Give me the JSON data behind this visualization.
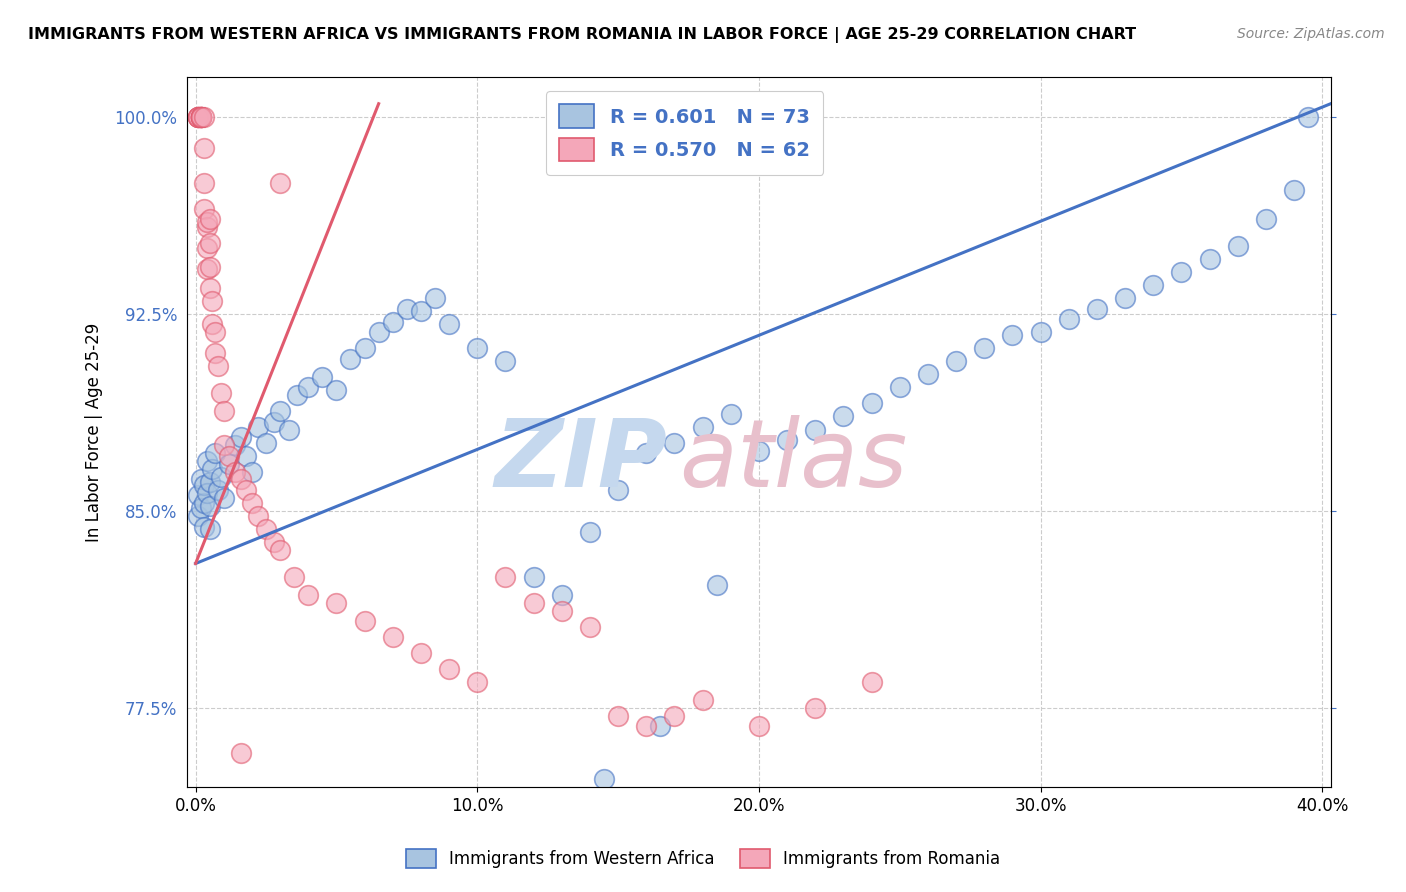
{
  "title": "IMMIGRANTS FROM WESTERN AFRICA VS IMMIGRANTS FROM ROMANIA IN LABOR FORCE | AGE 25-29 CORRELATION CHART",
  "source": "Source: ZipAtlas.com",
  "ylabel": "In Labor Force | Age 25-29",
  "xlim": [
    -0.003,
    0.403
  ],
  "ylim": [
    0.745,
    1.015
  ],
  "yticks": [
    0.775,
    0.85,
    0.925,
    1.0
  ],
  "ytick_labels": [
    "77.5%",
    "85.0%",
    "92.5%",
    "100.0%"
  ],
  "xticks": [
    0.0,
    0.1,
    0.2,
    0.3,
    0.4
  ],
  "xtick_labels": [
    "0.0%",
    "10.0%",
    "20.0%",
    "30.0%",
    "40.0%"
  ],
  "blue_R": 0.601,
  "blue_N": 73,
  "pink_R": 0.57,
  "pink_N": 62,
  "blue_color": "#a8c4e0",
  "pink_color": "#f4a7b9",
  "blue_line_color": "#4472c4",
  "pink_line_color": "#e05a6e",
  "blue_line_x": [
    0.0,
    0.403
  ],
  "blue_line_y": [
    0.83,
    1.005
  ],
  "pink_line_x": [
    0.0,
    0.065
  ],
  "pink_line_y": [
    0.83,
    1.005
  ],
  "blue_scatter_x": [
    0.001,
    0.001,
    0.002,
    0.002,
    0.003,
    0.003,
    0.003,
    0.004,
    0.004,
    0.005,
    0.005,
    0.005,
    0.006,
    0.007,
    0.008,
    0.009,
    0.01,
    0.012,
    0.014,
    0.016,
    0.018,
    0.02,
    0.022,
    0.025,
    0.028,
    0.03,
    0.033,
    0.036,
    0.04,
    0.045,
    0.05,
    0.055,
    0.06,
    0.065,
    0.07,
    0.075,
    0.08,
    0.085,
    0.09,
    0.1,
    0.11,
    0.12,
    0.13,
    0.14,
    0.15,
    0.16,
    0.17,
    0.18,
    0.19,
    0.2,
    0.21,
    0.22,
    0.23,
    0.24,
    0.25,
    0.26,
    0.27,
    0.28,
    0.29,
    0.3,
    0.31,
    0.32,
    0.33,
    0.34,
    0.35,
    0.36,
    0.37,
    0.38,
    0.39,
    0.395,
    0.145,
    0.165,
    0.185
  ],
  "blue_scatter_y": [
    0.856,
    0.848,
    0.851,
    0.862,
    0.853,
    0.86,
    0.844,
    0.857,
    0.869,
    0.852,
    0.861,
    0.843,
    0.866,
    0.872,
    0.858,
    0.863,
    0.855,
    0.868,
    0.875,
    0.878,
    0.871,
    0.865,
    0.882,
    0.876,
    0.884,
    0.888,
    0.881,
    0.894,
    0.897,
    0.901,
    0.896,
    0.908,
    0.912,
    0.918,
    0.922,
    0.927,
    0.926,
    0.931,
    0.921,
    0.912,
    0.907,
    0.825,
    0.818,
    0.842,
    0.858,
    0.872,
    0.876,
    0.882,
    0.887,
    0.873,
    0.877,
    0.881,
    0.886,
    0.891,
    0.897,
    0.902,
    0.907,
    0.912,
    0.917,
    0.918,
    0.923,
    0.927,
    0.931,
    0.936,
    0.941,
    0.946,
    0.951,
    0.961,
    0.972,
    1.0,
    0.748,
    0.768,
    0.822
  ],
  "pink_scatter_x": [
    0.001,
    0.001,
    0.001,
    0.001,
    0.001,
    0.002,
    0.002,
    0.002,
    0.002,
    0.002,
    0.002,
    0.002,
    0.003,
    0.003,
    0.003,
    0.003,
    0.004,
    0.004,
    0.004,
    0.004,
    0.005,
    0.005,
    0.005,
    0.005,
    0.006,
    0.006,
    0.007,
    0.007,
    0.008,
    0.009,
    0.01,
    0.01,
    0.012,
    0.014,
    0.016,
    0.018,
    0.02,
    0.022,
    0.025,
    0.028,
    0.03,
    0.035,
    0.04,
    0.05,
    0.06,
    0.07,
    0.08,
    0.09,
    0.1,
    0.11,
    0.12,
    0.13,
    0.14,
    0.15,
    0.16,
    0.17,
    0.18,
    0.2,
    0.22,
    0.24,
    0.016,
    0.03
  ],
  "pink_scatter_y": [
    1.0,
    1.0,
    1.0,
    1.0,
    1.0,
    1.0,
    1.0,
    1.0,
    1.0,
    1.0,
    1.0,
    1.0,
    1.0,
    0.988,
    0.975,
    0.965,
    0.958,
    0.95,
    0.942,
    0.96,
    0.961,
    0.952,
    0.943,
    0.935,
    0.93,
    0.921,
    0.918,
    0.91,
    0.905,
    0.895,
    0.888,
    0.875,
    0.871,
    0.865,
    0.862,
    0.858,
    0.853,
    0.848,
    0.843,
    0.838,
    0.835,
    0.825,
    0.818,
    0.815,
    0.808,
    0.802,
    0.796,
    0.79,
    0.785,
    0.825,
    0.815,
    0.812,
    0.806,
    0.772,
    0.768,
    0.772,
    0.778,
    0.768,
    0.775,
    0.785,
    0.758,
    0.975
  ],
  "watermark_zip_color": "#c5d8ee",
  "watermark_atlas_color": "#e8c0cc"
}
